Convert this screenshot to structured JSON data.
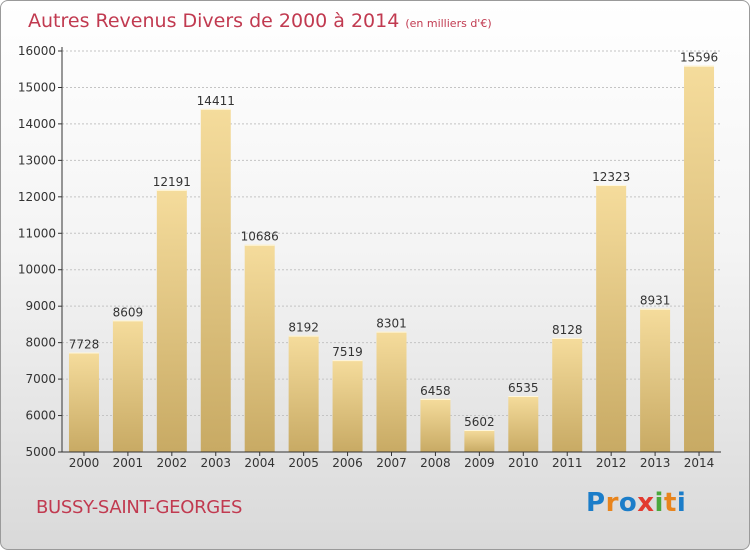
{
  "chart_data": {
    "type": "bar",
    "title": "Autres Revenus Divers de 2000 à 2014",
    "unit_label": "(en milliers d'€)",
    "categories": [
      "2000",
      "2001",
      "2002",
      "2003",
      "2004",
      "2005",
      "2006",
      "2007",
      "2008",
      "2009",
      "2010",
      "2011",
      "2012",
      "2013",
      "2014"
    ],
    "values": [
      7728,
      8609,
      12191,
      14411,
      10686,
      8192,
      7519,
      8301,
      6458,
      5602,
      6535,
      8128,
      12323,
      8931,
      15596
    ],
    "ylim": [
      5000,
      16000
    ],
    "yticks": [
      5000,
      6000,
      7000,
      8000,
      9000,
      10000,
      11000,
      12000,
      13000,
      14000,
      15000,
      16000
    ],
    "grid": true,
    "bar_color_top": "#f5dc9c",
    "bar_color_bottom": "#c8aa64"
  },
  "footer": {
    "city": "BUSSY-SAINT-GEORGES",
    "brand_letters": [
      "P",
      "r",
      "o",
      "x",
      "i",
      "t",
      "i"
    ],
    "brand_colors": [
      "#1b7dc9",
      "#e8841c",
      "#1b7dc9",
      "#e23a2f",
      "#4aa83c",
      "#e8841c",
      "#1b7dc9"
    ]
  }
}
